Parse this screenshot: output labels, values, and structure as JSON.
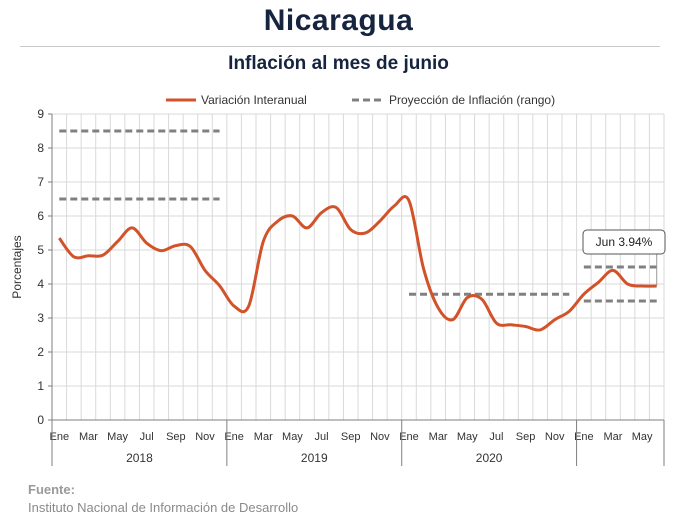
{
  "header": {
    "title": "Nicaragua",
    "subtitle": "Inflación al mes de junio"
  },
  "source": {
    "label": "Fuente:",
    "text": "Instituto Nacional de Información de  Desarrollo"
  },
  "colors": {
    "series": "#d2522a",
    "projection": "#808080",
    "grid": "#d9d9d9",
    "axis": "#7f7f7f"
  },
  "chart_data": {
    "type": "line",
    "title": "Inflación al mes de junio",
    "ylabel": "Porcentajes",
    "ylim": [
      0,
      9
    ],
    "yticks": [
      0,
      1,
      2,
      3,
      4,
      5,
      6,
      7,
      8,
      9
    ],
    "grid": true,
    "legend_position": "top",
    "x": [
      "Ene 2018",
      "Feb 2018",
      "Mar 2018",
      "Abr 2018",
      "May 2018",
      "Jun 2018",
      "Jul 2018",
      "Ago 2018",
      "Sep 2018",
      "Oct 2018",
      "Nov 2018",
      "Dic 2018",
      "Ene 2019",
      "Feb 2019",
      "Mar 2019",
      "Abr 2019",
      "May 2019",
      "Jun 2019",
      "Jul 2019",
      "Ago 2019",
      "Sep 2019",
      "Oct 2019",
      "Nov 2019",
      "Dic 2019",
      "Ene 2020",
      "Feb 2020",
      "Mar 2020",
      "Abr 2020",
      "May 2020",
      "Jun 2020",
      "Jul 2020",
      "Ago 2020",
      "Sep 2020",
      "Oct 2020",
      "Nov 2020",
      "Dic 2020",
      "Ene 2021",
      "Feb 2021",
      "Mar 2021",
      "Abr 2021",
      "May 2021",
      "Jun 2021"
    ],
    "x_tick_labels": [
      "Ene",
      "",
      "Mar",
      "",
      "May",
      "",
      "Jul",
      "",
      "Sep",
      "",
      "Nov",
      "",
      "Ene",
      "",
      "Mar",
      "",
      "May",
      "",
      "Jul",
      "",
      "Sep",
      "",
      "Nov",
      "",
      "Ene",
      "",
      "Mar",
      "",
      "May",
      "",
      "Jul",
      "",
      "Sep",
      "",
      "Nov",
      "",
      "Ene",
      "",
      "Mar",
      "",
      "May",
      ""
    ],
    "years": [
      {
        "label": "2018",
        "start": 0,
        "end": 11
      },
      {
        "label": "2019",
        "start": 12,
        "end": 23
      },
      {
        "label": "2020",
        "start": 24,
        "end": 35
      },
      {
        "label": "",
        "start": 36,
        "end": 41
      }
    ],
    "series": [
      {
        "name": "Variación Interanual",
        "values": [
          5.35,
          4.8,
          4.83,
          4.85,
          5.25,
          5.65,
          5.2,
          4.98,
          5.13,
          5.1,
          4.4,
          3.95,
          3.35,
          3.35,
          5.25,
          5.85,
          6.0,
          5.65,
          6.1,
          6.25,
          5.6,
          5.5,
          5.85,
          6.3,
          6.45,
          4.45,
          3.3,
          2.95,
          3.6,
          3.55,
          2.85,
          2.8,
          2.75,
          2.65,
          2.95,
          3.2,
          3.7,
          4.05,
          4.4,
          4.0,
          3.94,
          3.94
        ]
      }
    ],
    "projection": {
      "name": "Proyección de Inflación (rango)",
      "segments": [
        {
          "x_start": 0,
          "x_end": 11,
          "value": 8.5
        },
        {
          "x_start": 0,
          "x_end": 11,
          "value": 6.5
        },
        {
          "x_start": 24,
          "x_end": 35,
          "value": 3.7
        },
        {
          "x_start": 36,
          "x_end": 41,
          "value": 4.5
        },
        {
          "x_start": 36,
          "x_end": 41,
          "value": 3.5
        }
      ]
    },
    "annotation": {
      "text": "Jun 3.94%",
      "x_index": 41,
      "value": 3.94
    }
  }
}
